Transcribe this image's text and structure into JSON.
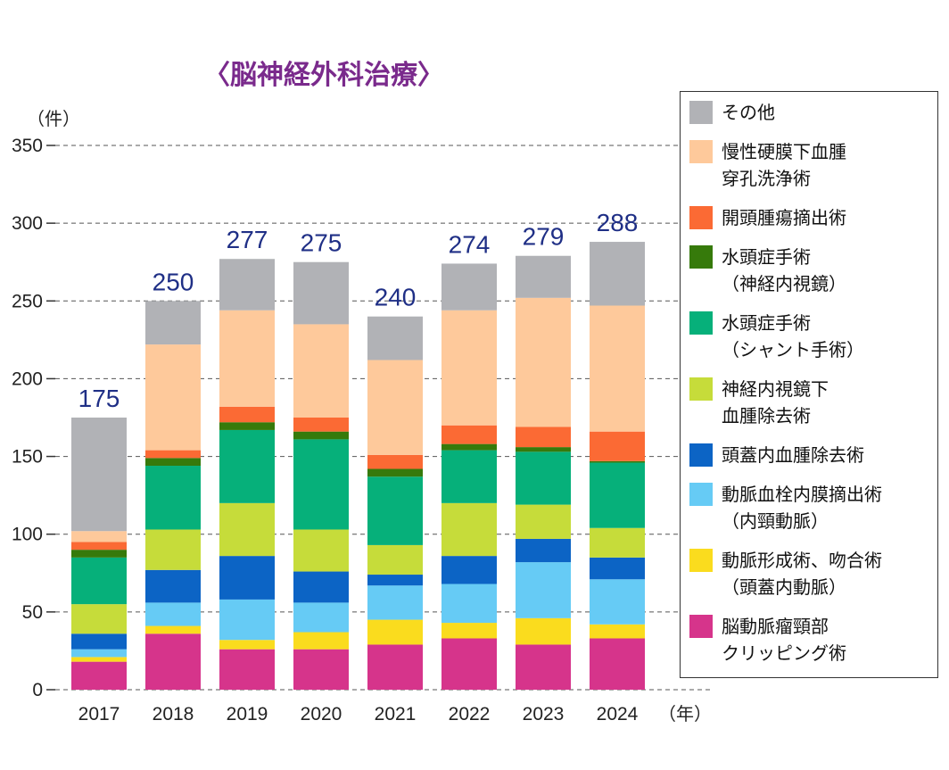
{
  "chart_data": {
    "type": "bar",
    "stacked": true,
    "title": "〈脳神経外科治療〉",
    "ylabel": "（件）",
    "xlabel": "（年）",
    "ylim": [
      0,
      350
    ],
    "yticks": [
      0,
      50,
      100,
      150,
      200,
      250,
      300,
      350
    ],
    "grid": true,
    "legend_position": "right",
    "categories": [
      "2017",
      "2018",
      "2019",
      "2020",
      "2021",
      "2022",
      "2023",
      "2024"
    ],
    "totals": [
      175,
      250,
      277,
      275,
      240,
      274,
      279,
      288
    ],
    "series": [
      {
        "name": "脳動脈瘤頸部クリッピング術",
        "label_lines": [
          "脳動脈瘤頸部",
          "クリッピング術"
        ],
        "color": "#d6348b",
        "values": [
          18,
          36,
          26,
          26,
          29,
          33,
          29,
          33
        ]
      },
      {
        "name": "動脈形成術、吻合術（頭蓋内動脈）",
        "label_lines": [
          "動脈形成術、吻合術",
          "（頭蓋内動脈）"
        ],
        "color": "#fadc1e",
        "values": [
          3,
          5,
          6,
          11,
          16,
          10,
          17,
          9
        ]
      },
      {
        "name": "動脈血栓内膜摘出術（内頸動脈）",
        "label_lines": [
          "動脈血栓内膜摘出術",
          "（内頸動脈）"
        ],
        "color": "#66cbf5",
        "values": [
          5,
          15,
          26,
          19,
          22,
          25,
          36,
          29
        ]
      },
      {
        "name": "頭蓋内血腫除去術",
        "label_lines": [
          "頭蓋内血腫除去術"
        ],
        "color": "#0c64c5",
        "values": [
          10,
          21,
          28,
          20,
          7,
          18,
          15,
          14
        ]
      },
      {
        "name": "神経内視鏡下血腫除去術",
        "label_lines": [
          "神経内視鏡下",
          "血腫除去術"
        ],
        "color": "#c6dc3a",
        "values": [
          19,
          26,
          34,
          27,
          19,
          34,
          22,
          19
        ]
      },
      {
        "name": "水頭症手術（シャント手術）",
        "label_lines": [
          "水頭症手術",
          "（シャント手術）"
        ],
        "color": "#06b07a",
        "values": [
          30,
          41,
          47,
          58,
          44,
          34,
          34,
          42
        ]
      },
      {
        "name": "水頭症手術（神経内視鏡）",
        "label_lines": [
          "水頭症手術",
          "（神経内視鏡）"
        ],
        "color": "#367a0b",
        "values": [
          5,
          5,
          5,
          5,
          5,
          4,
          3,
          1
        ]
      },
      {
        "name": "開頭腫瘍摘出術",
        "label_lines": [
          "開頭腫瘍摘出術"
        ],
        "color": "#fb6a34",
        "values": [
          5,
          5,
          10,
          9,
          9,
          12,
          13,
          19
        ]
      },
      {
        "name": "慢性硬膜下血腫穿孔洗浄術",
        "label_lines": [
          "慢性硬膜下血腫",
          "穿孔洗浄術"
        ],
        "color": "#fec99b",
        "values": [
          7,
          68,
          62,
          60,
          61,
          74,
          83,
          81
        ]
      },
      {
        "name": "その他",
        "label_lines": [
          "その他"
        ],
        "color": "#b1b2b6",
        "values": [
          73,
          28,
          33,
          40,
          28,
          30,
          27,
          41
        ]
      }
    ]
  }
}
